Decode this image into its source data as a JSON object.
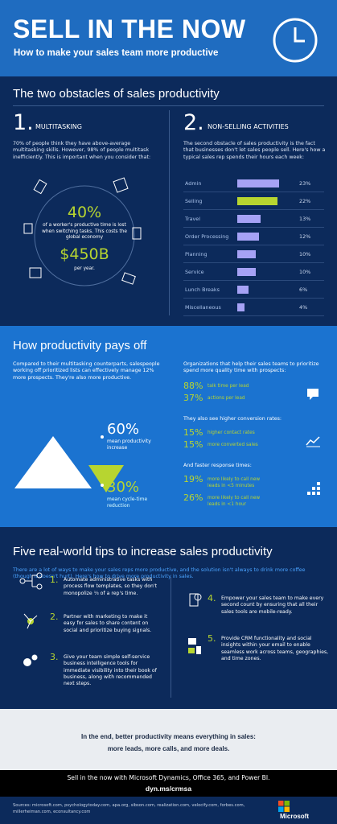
{
  "header": {
    "title": "SELL IN THE NOW",
    "subtitle": "How to make your sales team more productive"
  },
  "obstacles": {
    "title": "The two obstacles of sales productivity",
    "left": {
      "number": "1.",
      "heading": "MULTITASKING",
      "text": "70% of people think they have above-average multitasking skills. However, 98% of people multitask inefficiently. This is important when you consider that:",
      "stat": "40%",
      "stat_text": "of a worker's productive time is lost when switching tasks. This costs the global economy",
      "amount": "$450B",
      "amount_text": "per year."
    },
    "right": {
      "number": "2.",
      "heading": "NON-SELLING ACTIVITIES",
      "text": "The second obstacle of sales productivity is the fact that businesses don't let sales people sell. Here's how a typical sales rep spends their hours each week:",
      "chart": {
        "type": "bar",
        "categories": [
          "Admin",
          "Selling",
          "Travel",
          "Order Processing",
          "Planning",
          "Service",
          "Lunch Breaks",
          "Miscellaneous"
        ],
        "values": [
          23,
          22,
          13,
          12,
          10,
          10,
          6,
          4
        ],
        "value_labels": [
          "23%",
          "22%",
          "13%",
          "12%",
          "10%",
          "10%",
          "6%",
          "4%"
        ],
        "color": "#a6a2f5",
        "highlight": {
          "category": "Selling",
          "color": "#b7d530"
        }
      }
    }
  },
  "payoff": {
    "title": "How productivity pays off",
    "text": "Compared to their multitasking counterparts, salespeople working off prioritized lists can effectively manage 12% more prospects. They're also more productive.",
    "stat1": "60%",
    "stat1_text": "mean productivity increase",
    "stat2": "30%",
    "stat2_text": "mean cycle-time reduction",
    "groups": [
      {
        "intro": "Organizations that help their sales teams to prioritize spend more quality time with prospects:",
        "items": [
          {
            "value": "88%",
            "text": "talk time per lead"
          },
          {
            "value": "37%",
            "text": "actions per lead"
          }
        ]
      },
      {
        "intro": "They also see higher conversion rates:",
        "items": [
          {
            "value": "15%",
            "text": "higher contact rates"
          },
          {
            "value": "15%",
            "text": "more converted sales"
          }
        ]
      },
      {
        "intro": "And faster response times:",
        "items": [
          {
            "value": "19%",
            "text": "more likely to call new leads in <5 minutes"
          },
          {
            "value": "26%",
            "text": "more likely to call new leads in <1 hour"
          }
        ]
      }
    ]
  },
  "tips": {
    "title": "Five real-world tips to increase sales productivity",
    "intro": "There are a lot of ways to make your sales reps more productive, and the solution isn't always to drink more coffee (though it doesn't hurt).  Here's how to drive more productivity in sales.",
    "items": [
      {
        "number": "1.",
        "text": "Automate administrative tasks with process flow templates, so they don't monopolize ⅓ of a rep's time."
      },
      {
        "number": "2.",
        "text": "Partner with marketing to make it easy for sales to share content on social and prioritize buying signals."
      },
      {
        "number": "3.",
        "text": "Give your team simple self-service business intelligence tools for immediate visibility into their book of business, along with recommended next steps."
      },
      {
        "number": "4.",
        "text": "Empower your sales team to make every second count by ensuring that all their sales tools are mobile-ready."
      },
      {
        "number": "5.",
        "text": "Provide CRM functionality and social insights within your email to enable seamless work across teams, geographies, and time zones."
      }
    ]
  },
  "conclusion": {
    "line1": "In the end, better productivity means everything in sales:",
    "line2": "more leads, more calls, and more deals."
  },
  "footer": {
    "text": "Sell in the now with Microsoft Dynamics, Office 365, and Power BI.",
    "link": "dyn.ms/crmsa",
    "sources": "Sources: microsoft.com, psychologytoday.com, apa.org, sibson.com, realization.com, velocify.com, forbes.com, millerheiman.com, econsultancy.com",
    "logo": "Microsoft"
  }
}
